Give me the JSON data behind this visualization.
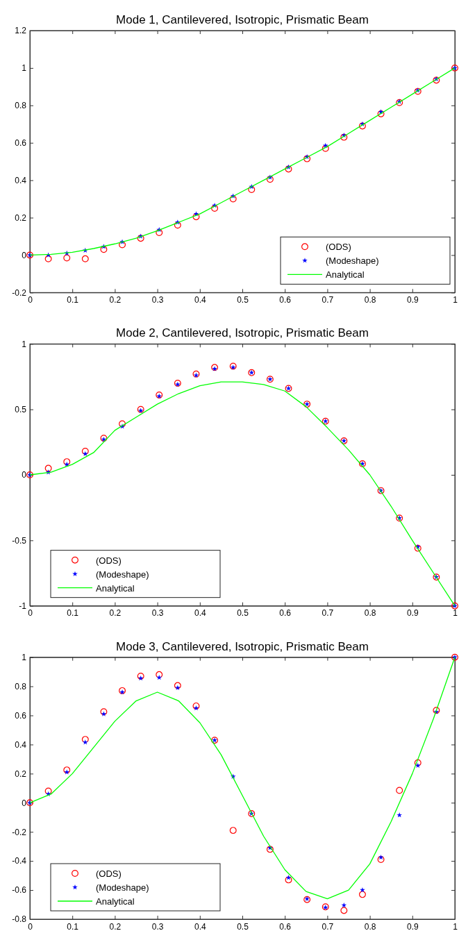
{
  "chart_data": [
    {
      "type": "scatter",
      "title": "Mode 1, Cantilevered, Isotropic, Prismatic Beam",
      "legend": "bottom right",
      "xlim": [
        0,
        1
      ],
      "xticks": [
        0,
        0.1,
        0.2,
        0.3,
        0.4,
        0.5,
        0.6,
        0.7,
        0.8,
        0.9,
        1
      ],
      "ylim": [
        -0.2,
        1.2
      ],
      "yticks": [
        -0.2,
        0,
        0.2,
        0.4,
        0.6,
        0.8,
        1,
        1.2
      ],
      "x": [
        0,
        0.0435,
        0.087,
        0.1304,
        0.1739,
        0.2174,
        0.2609,
        0.3043,
        0.3478,
        0.3913,
        0.4348,
        0.4783,
        0.5217,
        0.5652,
        0.6087,
        0.6522,
        0.6957,
        0.7391,
        0.7826,
        0.8261,
        0.8696,
        0.913,
        0.9565,
        1
      ],
      "series": [
        {
          "name": "(ODS)",
          "marker": "circle",
          "color": "#ff0000",
          "values": [
            0,
            -0.02,
            -0.015,
            -0.02,
            0.03,
            0.055,
            0.09,
            0.12,
            0.16,
            0.205,
            0.25,
            0.3,
            0.35,
            0.405,
            0.46,
            0.515,
            0.57,
            0.63,
            0.69,
            0.755,
            0.815,
            0.875,
            0.935,
            1
          ]
        },
        {
          "name": "(Modeshape)",
          "marker": "star",
          "color": "#0000ff",
          "values": [
            0,
            0,
            0.01,
            0.025,
            0.045,
            0.07,
            0.1,
            0.135,
            0.175,
            0.22,
            0.265,
            0.315,
            0.365,
            0.415,
            0.47,
            0.525,
            0.585,
            0.64,
            0.7,
            0.765,
            0.82,
            0.88,
            0.94,
            1
          ]
        },
        {
          "name": "Analytical",
          "type": "line",
          "color": "#00ff00",
          "x": [
            0,
            0.05,
            0.1,
            0.15,
            0.2,
            0.25,
            0.3,
            0.35,
            0.4,
            0.45,
            0.5,
            0.55,
            0.6,
            0.65,
            0.7,
            0.75,
            0.8,
            0.85,
            0.9,
            0.95,
            1
          ],
          "values": [
            0,
            0.004,
            0.015,
            0.035,
            0.06,
            0.09,
            0.13,
            0.175,
            0.22,
            0.28,
            0.34,
            0.4,
            0.46,
            0.52,
            0.58,
            0.65,
            0.72,
            0.79,
            0.86,
            0.93,
            1
          ]
        }
      ]
    },
    {
      "type": "scatter",
      "title": "Mode 2, Cantilevered, Isotropic, Prismatic Beam",
      "legend": "bottom left",
      "xlim": [
        0,
        1
      ],
      "xticks": [
        0,
        0.1,
        0.2,
        0.3,
        0.4,
        0.5,
        0.6,
        0.7,
        0.8,
        0.9,
        1
      ],
      "ylim": [
        -1,
        1
      ],
      "yticks": [
        -1,
        -0.5,
        0,
        0.5,
        1
      ],
      "x": [
        0,
        0.0435,
        0.087,
        0.1304,
        0.1739,
        0.2174,
        0.2609,
        0.3043,
        0.3478,
        0.3913,
        0.4348,
        0.4783,
        0.5217,
        0.5652,
        0.6087,
        0.6522,
        0.6957,
        0.7391,
        0.7826,
        0.8261,
        0.8696,
        0.913,
        0.9565,
        1
      ],
      "series": [
        {
          "name": "(ODS)",
          "marker": "circle",
          "color": "#ff0000",
          "values": [
            0,
            0.05,
            0.1,
            0.18,
            0.28,
            0.39,
            0.5,
            0.61,
            0.7,
            0.77,
            0.82,
            0.83,
            0.78,
            0.73,
            0.66,
            0.54,
            0.41,
            0.26,
            0.085,
            -0.12,
            -0.33,
            -0.56,
            -0.78,
            -1
          ]
        },
        {
          "name": "(Modeshape)",
          "marker": "star",
          "color": "#0000ff",
          "values": [
            0,
            0.02,
            0.08,
            0.16,
            0.27,
            0.37,
            0.49,
            0.6,
            0.69,
            0.76,
            0.81,
            0.82,
            0.78,
            0.73,
            0.66,
            0.54,
            0.41,
            0.26,
            0.085,
            -0.12,
            -0.33,
            -0.55,
            -0.78,
            -1
          ]
        },
        {
          "name": "Analytical",
          "type": "line",
          "color": "#00ff00",
          "x": [
            0,
            0.05,
            0.1,
            0.15,
            0.2,
            0.25,
            0.3,
            0.35,
            0.4,
            0.45,
            0.5,
            0.55,
            0.6,
            0.65,
            0.7,
            0.75,
            0.8,
            0.85,
            0.9,
            0.95,
            1
          ],
          "values": [
            0,
            0.02,
            0.08,
            0.17,
            0.34,
            0.44,
            0.54,
            0.62,
            0.68,
            0.71,
            0.71,
            0.69,
            0.64,
            0.52,
            0.36,
            0.19,
            0,
            -0.24,
            -0.5,
            -0.75,
            -1
          ]
        }
      ]
    },
    {
      "type": "scatter",
      "title": "Mode 3, Cantilevered, Isotropic, Prismatic Beam",
      "legend": "bottom left",
      "xlim": [
        0,
        1
      ],
      "xticks": [
        0,
        0.1,
        0.2,
        0.3,
        0.4,
        0.5,
        0.6,
        0.7,
        0.8,
        0.9,
        1
      ],
      "ylim": [
        -0.8,
        1
      ],
      "yticks": [
        -0.8,
        -0.6,
        -0.4,
        -0.2,
        0,
        0.2,
        0.4,
        0.6,
        0.8,
        1
      ],
      "x": [
        0,
        0.0435,
        0.087,
        0.1304,
        0.1739,
        0.2174,
        0.2609,
        0.3043,
        0.3478,
        0.3913,
        0.4348,
        0.4783,
        0.5217,
        0.5652,
        0.6087,
        0.6522,
        0.6957,
        0.7391,
        0.7826,
        0.8261,
        0.8696,
        0.913,
        0.9565,
        1
      ],
      "series": [
        {
          "name": "(ODS)",
          "marker": "circle",
          "color": "#ff0000",
          "values": [
            0,
            0.08,
            0.225,
            0.435,
            0.625,
            0.77,
            0.87,
            0.88,
            0.805,
            0.665,
            0.43,
            -0.19,
            -0.075,
            -0.32,
            -0.53,
            -0.665,
            -0.715,
            -0.74,
            -0.63,
            -0.39,
            0.085,
            0.275,
            0.635,
            1
          ]
        },
        {
          "name": "(Modeshape)",
          "marker": "star",
          "color": "#0000ff",
          "values": [
            0,
            0.06,
            0.21,
            0.415,
            0.61,
            0.76,
            0.855,
            0.86,
            0.79,
            0.65,
            0.43,
            0.18,
            -0.075,
            -0.31,
            -0.515,
            -0.66,
            -0.72,
            -0.705,
            -0.6,
            -0.375,
            -0.085,
            0.255,
            0.625,
            1
          ]
        },
        {
          "name": "Analytical",
          "type": "line",
          "color": "#00ff00",
          "x": [
            0,
            0.05,
            0.1,
            0.15,
            0.2,
            0.25,
            0.3,
            0.35,
            0.4,
            0.45,
            0.5,
            0.55,
            0.6,
            0.65,
            0.7,
            0.75,
            0.8,
            0.85,
            0.9,
            0.95,
            1
          ],
          "values": [
            0,
            0.06,
            0.2,
            0.38,
            0.56,
            0.7,
            0.76,
            0.7,
            0.55,
            0.33,
            0.05,
            -0.23,
            -0.46,
            -0.61,
            -0.66,
            -0.6,
            -0.42,
            -0.13,
            0.2,
            0.58,
            1
          ]
        }
      ]
    }
  ]
}
